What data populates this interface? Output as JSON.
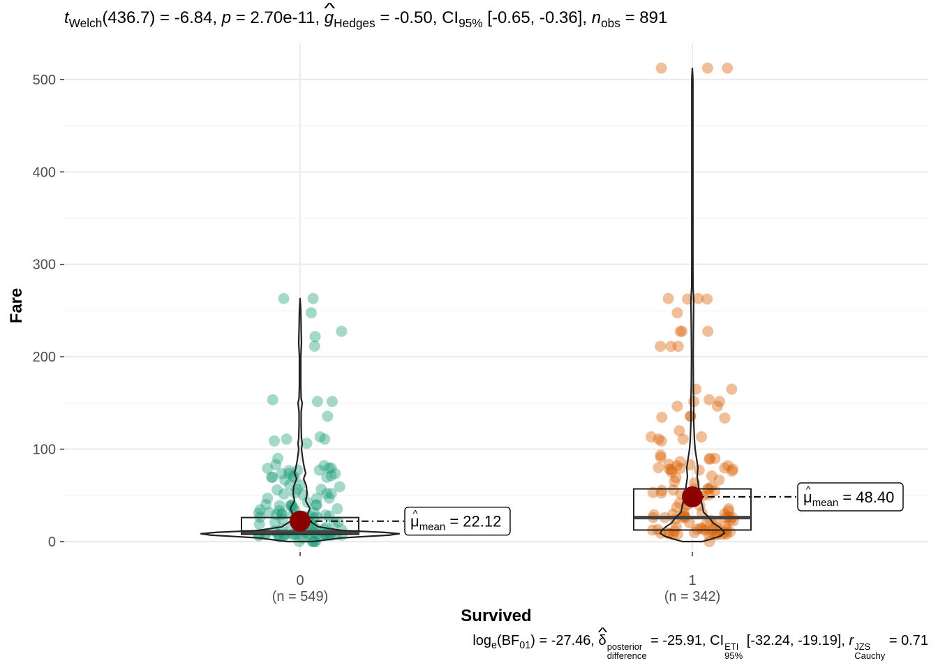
{
  "subtitle": {
    "t_label": "t",
    "t_sub": "Welch",
    "t_df": "(436.7) = -6.84, ",
    "p_label": "p",
    "p_value": " = 2.70e-11, ",
    "g_label": "g",
    "g_sub": "Hedges",
    "g_value": " = -0.50, CI",
    "ci_sub": "95%",
    "ci_value": " [-0.65, -0.36], ",
    "n_label": "n",
    "n_sub": "obs",
    "n_value": " = 891"
  },
  "caption": {
    "log_label": "log",
    "log_sub": "e",
    "bf_open": "(BF",
    "bf_sub": "01",
    "bf_value": ") = -27.46, ",
    "delta": "δ",
    "delta_sup": "posterior",
    "delta_sub": "difference",
    "delta_value": " = -25.91, CI",
    "ci_sup": "ETI",
    "ci_sub": "95%",
    "ci_value": " [-32.24, -19.19], ",
    "r_label": "r",
    "r_sup": "JZS",
    "r_sub": "Cauchy",
    "r_value": " = 0.71"
  },
  "chart_data": {
    "type": "violin-box-scatter",
    "xlabel": "Survived",
    "ylabel": "Fare",
    "ylim": [
      -10,
      540
    ],
    "yticks": [
      0,
      100,
      200,
      300,
      400,
      500
    ],
    "grid": true,
    "legend": "none",
    "categories": [
      {
        "name": "0",
        "n_label": "(n = 549)",
        "color": "#1B9E77",
        "box": {
          "q1": 7.9,
          "median": 10.5,
          "q3": 26.0
        },
        "mean": 22.12,
        "mean_label_prefix": "μ",
        "mean_label_sub": "mean",
        "mean_label_value": " = 22.12",
        "points": [
          263,
          263,
          247.5,
          227.5,
          221.8,
          211.5,
          153.5,
          151.6,
          151.6,
          135.6,
          113.3,
          110.9,
          110.9,
          108.9,
          106.4,
          90,
          83.2,
          82.2,
          79.6,
          79.6,
          79.2,
          77.3,
          77.3,
          76.7,
          73.5,
          73.5,
          73.5,
          71.3,
          71,
          69.6,
          69.6,
          69.6,
          69.6,
          66.6,
          61.4,
          61.2,
          59.4,
          56.5,
          56.5,
          55.9,
          52.6,
          52,
          51.9,
          51.5,
          50.5,
          47.1,
          46.9,
          46.9,
          42.4,
          40.1,
          39.7,
          39.7,
          39.6,
          39,
          39,
          38.5,
          36.8,
          35.5,
          34.4,
          34.4,
          33.5,
          31.4,
          31.3,
          30.7,
          30.1,
          29.7,
          29.1,
          29.1,
          28.7,
          27.9,
          27.7,
          27.7,
          27.7,
          26.6,
          26.3,
          26,
          26,
          25.9,
          25.5,
          24.2,
          21.7,
          21.1,
          21,
          20.6,
          20.5,
          19.5,
          18.8,
          17.8,
          16.1,
          15.5,
          15.2,
          14.5,
          13.5,
          13.4,
          13,
          12.9,
          11.5,
          10.5,
          9.6,
          9.5,
          8.7,
          8.5,
          8.1,
          8.05,
          8.05,
          7.9,
          7.9,
          7.9,
          7.9,
          7.8,
          7.8,
          7.8,
          7.75,
          7.75,
          7.7,
          7.25,
          7.25,
          7.2,
          7.05,
          7.05,
          6.9,
          6.75,
          6.5,
          6.2,
          5,
          4,
          0,
          0,
          0,
          0,
          0
        ]
      },
      {
        "name": "1",
        "n_label": "(n = 342)",
        "color": "#D95F02",
        "box": {
          "q1": 12.5,
          "median": 26.0,
          "q3": 57.0
        },
        "mean": 48.4,
        "mean_label_prefix": "μ",
        "mean_label_sub": "mean",
        "mean_label_value": " = 48.40",
        "points": [
          512.3,
          512.3,
          512.3,
          263,
          263,
          262.4,
          262.4,
          247.5,
          227.5,
          227.5,
          227.5,
          211.3,
          211.3,
          211.3,
          164.9,
          164.9,
          153.5,
          151.6,
          151.6,
          146.5,
          146.5,
          135.6,
          135.6,
          134.5,
          133.7,
          120,
          113.3,
          113.3,
          110.9,
          110.9,
          108.9,
          93.5,
          91.1,
          90,
          90,
          89.1,
          86.5,
          83.5,
          83.2,
          82.2,
          81.9,
          80,
          79.7,
          79.2,
          78.3,
          78.3,
          77.9,
          77.3,
          76.3,
          75.2,
          71,
          69.3,
          66.6,
          65,
          63.4,
          59.4,
          57,
          57,
          56.9,
          55.9,
          55.4,
          55,
          53.1,
          52.6,
          52,
          51.9,
          51.5,
          50.5,
          49.5,
          49.5,
          41.6,
          40.1,
          39.4,
          39,
          37,
          35.5,
          33,
          31,
          30.5,
          30,
          29.7,
          29,
          27.9,
          27.7,
          26.6,
          26.3,
          26,
          26,
          26,
          26,
          25.9,
          24.2,
          23.3,
          23,
          22.4,
          21,
          20.3,
          19.3,
          16.7,
          15.9,
          15.2,
          14.5,
          13.9,
          13.4,
          13,
          13,
          13,
          12.5,
          12.3,
          11.5,
          11.1,
          10.5,
          10.5,
          9.8,
          9.6,
          9.5,
          9.2,
          8.7,
          8.05,
          7.9,
          7.8,
          7.75,
          7.7,
          7.2,
          7,
          0
        ]
      }
    ]
  }
}
